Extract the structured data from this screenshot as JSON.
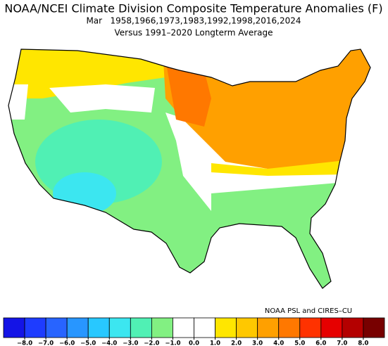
{
  "header": {
    "title": "NOAA/NCEI Climate Division Composite Temperature Anomalies (F)",
    "subtitle": "Mar   1958,1966,1973,1983,1992,1998,2016,2024",
    "baseline": "Versus 1991–2020 Longterm Average"
  },
  "credit": "NOAA PSL and CIRES–CU",
  "colorbar": {
    "ticks": [
      {
        "value": -8,
        "label": "−8.0"
      },
      {
        "value": -7,
        "label": "−7.0"
      },
      {
        "value": -6,
        "label": "−6.0"
      },
      {
        "value": -5,
        "label": "−5.0"
      },
      {
        "value": -4,
        "label": "−4.0"
      },
      {
        "value": -3,
        "label": "−3.0"
      },
      {
        "value": -2,
        "label": "−2.0"
      },
      {
        "value": -1,
        "label": "−1.0"
      },
      {
        "value": 0,
        "label": "0.0"
      },
      {
        "value": 1,
        "label": "1.0"
      },
      {
        "value": 2,
        "label": "2.0"
      },
      {
        "value": 3,
        "label": "3.0"
      },
      {
        "value": 4,
        "label": "4.0"
      },
      {
        "value": 5,
        "label": "5.0"
      },
      {
        "value": 6,
        "label": "6.0"
      },
      {
        "value": 7,
        "label": "7.0"
      },
      {
        "value": 8,
        "label": "8.0"
      }
    ],
    "colors": [
      "#1414e6",
      "#1e3cff",
      "#2864ff",
      "#2896ff",
      "#28c8ff",
      "#3ce6f0",
      "#50f0b4",
      "#82f082",
      "#ffffff",
      "#ffffff",
      "#ffe600",
      "#ffc800",
      "#ffa000",
      "#ff7800",
      "#ff3200",
      "#e60000",
      "#b40000",
      "#780000"
    ]
  }
}
